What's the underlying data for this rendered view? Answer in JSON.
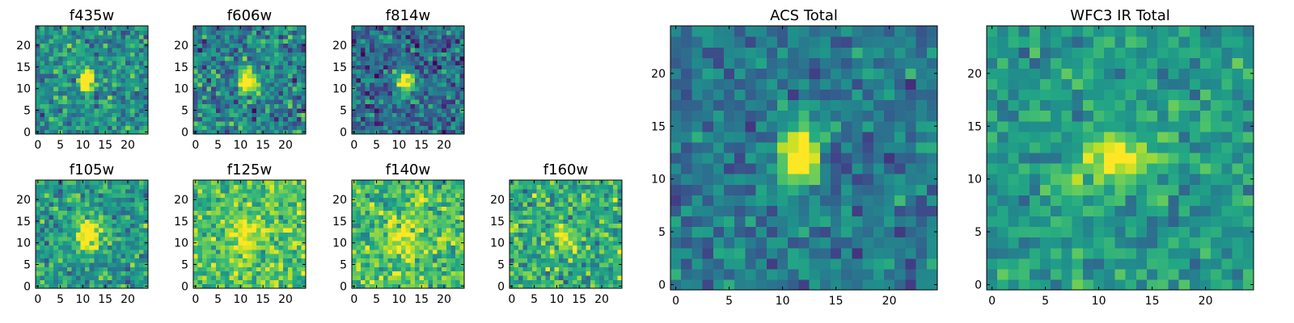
{
  "figure": {
    "colormap": "viridis"
  },
  "chart_data": [
    {
      "type": "heatmap",
      "title": "f435w",
      "rows": 25,
      "cols": 25,
      "xticks": [
        0,
        5,
        10,
        15,
        20
      ],
      "yticks": [
        0,
        5,
        10,
        15,
        20
      ],
      "xlim": [
        -0.5,
        24.5
      ],
      "ylim": [
        -0.5,
        24.5
      ],
      "source": {
        "center": [
          11.0,
          12.0
        ],
        "sigma": [
          1.0,
          2.0
        ],
        "peak": 1.0,
        "background": 0.5,
        "noise": 0.2,
        "seed": 1
      }
    },
    {
      "type": "heatmap",
      "title": "f606w",
      "rows": 25,
      "cols": 25,
      "xticks": [
        0,
        5,
        10,
        15,
        20
      ],
      "yticks": [
        0,
        5,
        10,
        15,
        20
      ],
      "xlim": [
        -0.5,
        24.5
      ],
      "ylim": [
        -0.5,
        24.5
      ],
      "source": {
        "center": [
          11.5,
          12.0
        ],
        "sigma": [
          1.3,
          2.0
        ],
        "peak": 0.85,
        "background": 0.45,
        "noise": 0.22,
        "seed": 2
      }
    },
    {
      "type": "heatmap",
      "title": "f814w",
      "rows": 25,
      "cols": 25,
      "xticks": [
        0,
        5,
        10,
        15,
        20
      ],
      "yticks": [
        0,
        5,
        10,
        15,
        20
      ],
      "xlim": [
        -0.5,
        24.5
      ],
      "ylim": [
        -0.5,
        24.5
      ],
      "source": {
        "center": [
          11.5,
          11.5
        ],
        "sigma": [
          1.5,
          2.0
        ],
        "peak": 0.8,
        "background": 0.35,
        "noise": 0.2,
        "seed": 3
      }
    },
    {
      "type": "heatmap",
      "title": "f105w",
      "rows": 25,
      "cols": 25,
      "xticks": [
        0,
        5,
        10,
        15,
        20
      ],
      "yticks": [
        0,
        5,
        10,
        15,
        20
      ],
      "xlim": [
        -0.5,
        24.5
      ],
      "ylim": [
        -0.5,
        24.5
      ],
      "source": {
        "center": [
          11.0,
          12.0
        ],
        "sigma": [
          2.5,
          2.5
        ],
        "peak": 0.5,
        "background": 0.55,
        "noise": 0.2,
        "seed": 4
      }
    },
    {
      "type": "heatmap",
      "title": "f125w",
      "rows": 25,
      "cols": 25,
      "xticks": [
        0,
        5,
        10,
        15,
        20
      ],
      "yticks": [
        0,
        5,
        10,
        15,
        20
      ],
      "xlim": [
        -0.5,
        24.5
      ],
      "ylim": [
        -0.5,
        24.5
      ],
      "source": {
        "center": [
          11.0,
          11.0
        ],
        "sigma": [
          3.0,
          3.0
        ],
        "peak": 0.3,
        "background": 0.72,
        "noise": 0.18,
        "seed": 5
      }
    },
    {
      "type": "heatmap",
      "title": "f140w",
      "rows": 25,
      "cols": 25,
      "xticks": [
        0,
        5,
        10,
        15,
        20
      ],
      "yticks": [
        0,
        5,
        10,
        15,
        20
      ],
      "xlim": [
        -0.5,
        24.5
      ],
      "ylim": [
        -0.5,
        24.5
      ],
      "source": {
        "center": [
          11.0,
          11.0
        ],
        "sigma": [
          3.0,
          3.0
        ],
        "peak": 0.3,
        "background": 0.7,
        "noise": 0.2,
        "seed": 6
      }
    },
    {
      "type": "heatmap",
      "title": "f160w",
      "rows": 25,
      "cols": 25,
      "xticks": [
        0,
        5,
        10,
        15,
        20
      ],
      "yticks": [
        0,
        5,
        10,
        15,
        20
      ],
      "xlim": [
        -0.5,
        24.5
      ],
      "ylim": [
        -0.5,
        24.5
      ],
      "source": {
        "center": [
          11.5,
          11.5
        ],
        "sigma": [
          2.0,
          2.0
        ],
        "peak": 0.4,
        "background": 0.62,
        "noise": 0.2,
        "seed": 7
      }
    },
    {
      "type": "heatmap",
      "title": "ACS Total",
      "rows": 25,
      "cols": 25,
      "xticks": [
        0,
        5,
        10,
        15,
        20
      ],
      "yticks": [
        0,
        5,
        10,
        15,
        20
      ],
      "xlim": [
        -0.5,
        24.5
      ],
      "ylim": [
        -0.5,
        24.5
      ],
      "source": {
        "center": [
          11.5,
          12.0
        ],
        "sigma": [
          1.3,
          2.0
        ],
        "peak": 0.9,
        "background": 0.4,
        "noise": 0.15,
        "seed": 8
      }
    },
    {
      "type": "heatmap",
      "title": "WFC3 IR Total",
      "rows": 25,
      "cols": 25,
      "xticks": [
        0,
        5,
        10,
        15,
        20
      ],
      "yticks": [
        0,
        5,
        10,
        15,
        20
      ],
      "xlim": [
        -0.5,
        24.5
      ],
      "ylim": [
        -0.5,
        24.5
      ],
      "source": {
        "center": [
          11.5,
          12.0
        ],
        "sigma": [
          2.2,
          1.8
        ],
        "peak": 0.45,
        "background": 0.55,
        "noise": 0.15,
        "seed": 9
      }
    }
  ]
}
